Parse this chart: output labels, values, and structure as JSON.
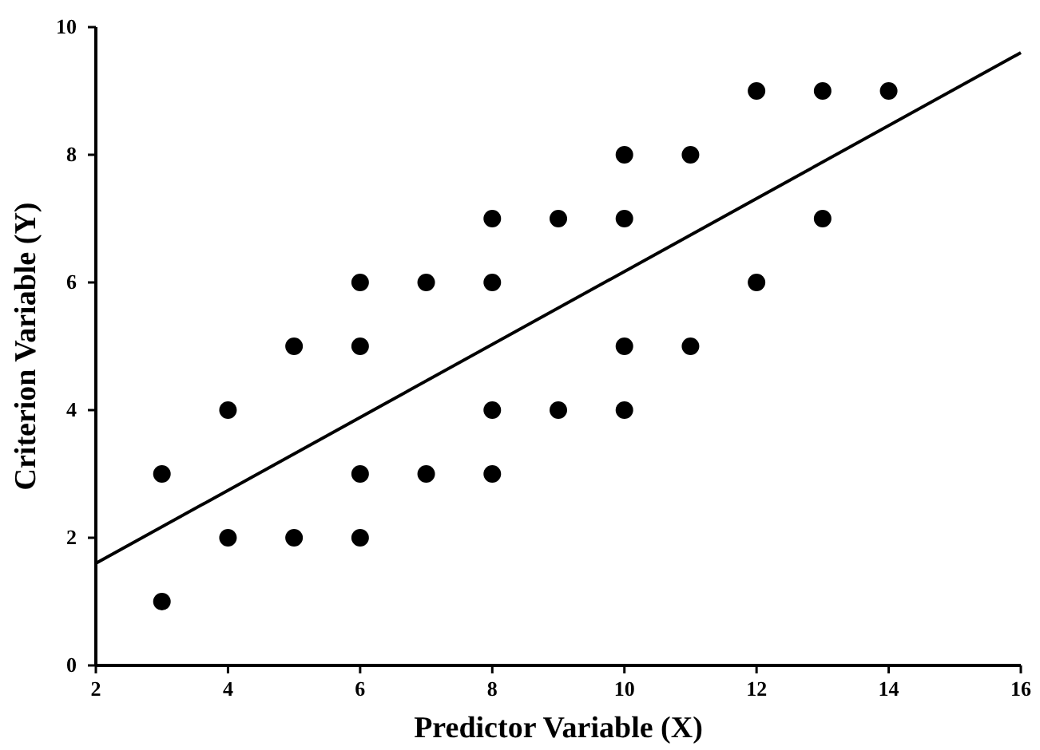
{
  "chart_data": {
    "type": "scatter",
    "xlabel": "Predictor Variable (X)",
    "ylabel": "Criterion Variable (Y)",
    "xlim": [
      2,
      16
    ],
    "xticks": [
      2,
      4,
      6,
      8,
      10,
      12,
      14,
      16
    ],
    "ylim": [
      0,
      10
    ],
    "yticks": [
      0,
      2,
      4,
      6,
      8,
      10
    ],
    "grid": false,
    "series": [
      {
        "marker": "circle",
        "color": "#000000",
        "x": [
          3,
          3,
          4,
          4,
          5,
          5,
          6,
          6,
          6,
          6,
          7,
          7,
          8,
          8,
          8,
          8,
          9,
          9,
          10,
          10,
          10,
          10,
          11,
          11,
          12,
          12,
          13,
          13,
          14
        ],
        "values": [
          1,
          3,
          4,
          2,
          5,
          2,
          6,
          5,
          3,
          2,
          6,
          3,
          7,
          6,
          4,
          3,
          7,
          4,
          8,
          7,
          5,
          4,
          8,
          5,
          9,
          6,
          9,
          7,
          9
        ]
      },
      {
        "type": "line",
        "color": "#000000",
        "x": [
          2,
          16
        ],
        "values": [
          1.6,
          9.6
        ],
        "line_style": "solid"
      }
    ]
  }
}
